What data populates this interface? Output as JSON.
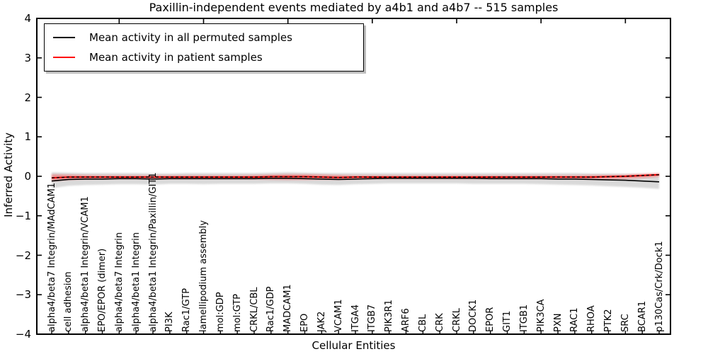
{
  "chart_data": {
    "type": "line",
    "title": "Paxillin-independent events mediated by a4b1 and a4b7 -- 515 samples",
    "xlabel": "Cellular Entities",
    "ylabel": "Inferred Activity",
    "ylim": [
      -4,
      4
    ],
    "yticks": [
      -4,
      -3,
      -2,
      -1,
      0,
      1,
      2,
      3,
      4
    ],
    "grid": false,
    "legend_position": "upper left",
    "categories": [
      "alpha4/beta7 Integrin/MAdCAM1",
      "cell adhesion",
      "alpha4/beta1 Integrin/VCAM1",
      "EPO/EPOR (dimer)",
      "alpha4/beta7 Integrin",
      "alpha4/beta1 Integrin",
      "alpha4/beta1 Integrin/Paxillin/GIT1",
      "PI3K",
      "Rac1/GTP",
      "lamellipodium assembly",
      "mol:GDP",
      "mol:GTP",
      "CRKL/CBL",
      "Rac1/GDP",
      "MADCAM1",
      "EPO",
      "JAK2",
      "VCAM1",
      "ITGA4",
      "ITGB7",
      "PIK3R1",
      "ARF6",
      "CBL",
      "CRK",
      "CRKL",
      "DOCK1",
      "EPOR",
      "GIT1",
      "ITGB1",
      "PIK3CA",
      "PXN",
      "RAC1",
      "RHOA",
      "PTK2",
      "SRC",
      "BCAR1",
      "p130Cas/Crk/Dock1"
    ],
    "series": [
      {
        "name": "Mean activity in all permuted samples",
        "color": "#000000",
        "style": "solid",
        "in_legend": true,
        "values": [
          -0.12,
          -0.08,
          -0.07,
          -0.07,
          -0.06,
          -0.06,
          -0.07,
          -0.06,
          -0.06,
          -0.06,
          -0.06,
          -0.06,
          -0.06,
          -0.05,
          -0.05,
          -0.06,
          -0.07,
          -0.08,
          -0.07,
          -0.06,
          -0.05,
          -0.05,
          -0.05,
          -0.05,
          -0.05,
          -0.05,
          -0.06,
          -0.06,
          -0.06,
          -0.06,
          -0.07,
          -0.07,
          -0.08,
          -0.09,
          -0.1,
          -0.12,
          -0.14
        ]
      },
      {
        "name": "Mean activity in patient samples",
        "color": "#ff0000",
        "style": "solid",
        "in_legend": true,
        "values": [
          -0.04,
          -0.02,
          -0.02,
          -0.02,
          -0.02,
          -0.02,
          -0.02,
          -0.02,
          -0.02,
          -0.02,
          -0.02,
          -0.02,
          -0.02,
          -0.01,
          -0.01,
          -0.01,
          -0.02,
          -0.03,
          -0.02,
          -0.02,
          -0.02,
          -0.02,
          -0.02,
          -0.02,
          -0.02,
          -0.02,
          -0.02,
          -0.02,
          -0.02,
          -0.02,
          -0.02,
          -0.02,
          -0.02,
          -0.01,
          0.0,
          0.02,
          0.04
        ]
      },
      {
        "name": "dashed-overlay-on-patient-mean",
        "color": "#000000",
        "style": "dashed",
        "in_legend": false,
        "values": [
          -0.04,
          -0.02,
          -0.02,
          -0.02,
          -0.02,
          -0.02,
          -0.02,
          -0.02,
          -0.02,
          -0.02,
          -0.02,
          -0.02,
          -0.02,
          -0.01,
          -0.01,
          -0.01,
          -0.02,
          -0.03,
          -0.02,
          -0.02,
          -0.02,
          -0.02,
          -0.02,
          -0.02,
          -0.02,
          -0.02,
          -0.02,
          -0.02,
          -0.02,
          -0.02,
          -0.02,
          -0.02,
          -0.02,
          -0.01,
          0.0,
          0.02,
          0.04
        ]
      }
    ],
    "bands": [
      {
        "name": "permuted-std-band",
        "color": "#aaaaaa",
        "opacity": 0.45,
        "upper": [
          0.1,
          0.09,
          0.08,
          0.08,
          0.08,
          0.08,
          0.07,
          0.07,
          0.08,
          0.08,
          0.08,
          0.08,
          0.08,
          0.09,
          0.1,
          0.09,
          0.08,
          0.08,
          0.08,
          0.08,
          0.08,
          0.08,
          0.08,
          0.08,
          0.08,
          0.08,
          0.08,
          0.08,
          0.08,
          0.08,
          0.08,
          0.08,
          0.07,
          0.07,
          0.06,
          0.06,
          0.05
        ],
        "lower": [
          -0.3,
          -0.24,
          -0.22,
          -0.21,
          -0.2,
          -0.2,
          -0.21,
          -0.19,
          -0.19,
          -0.2,
          -0.19,
          -0.19,
          -0.19,
          -0.18,
          -0.18,
          -0.19,
          -0.21,
          -0.22,
          -0.2,
          -0.19,
          -0.18,
          -0.18,
          -0.18,
          -0.18,
          -0.18,
          -0.19,
          -0.19,
          -0.19,
          -0.19,
          -0.2,
          -0.21,
          -0.22,
          -0.23,
          -0.25,
          -0.27,
          -0.29,
          -0.32
        ]
      },
      {
        "name": "patient-std-band",
        "color": "#ff2222",
        "opacity": 0.38,
        "upper": [
          0.05,
          0.04,
          0.03,
          0.02,
          0.02,
          0.02,
          0.02,
          0.02,
          0.02,
          0.02,
          0.02,
          0.02,
          0.03,
          0.04,
          0.05,
          0.05,
          0.04,
          0.03,
          0.02,
          0.02,
          0.02,
          0.02,
          0.02,
          0.02,
          0.02,
          0.02,
          0.02,
          0.02,
          0.02,
          0.02,
          0.02,
          0.02,
          0.03,
          0.03,
          0.04,
          0.06,
          0.08
        ],
        "lower": [
          -0.12,
          -0.09,
          -0.07,
          -0.06,
          -0.06,
          -0.06,
          -0.06,
          -0.06,
          -0.06,
          -0.06,
          -0.06,
          -0.06,
          -0.07,
          -0.08,
          -0.09,
          -0.09,
          -0.08,
          -0.08,
          -0.07,
          -0.06,
          -0.06,
          -0.06,
          -0.06,
          -0.06,
          -0.06,
          -0.06,
          -0.06,
          -0.06,
          -0.06,
          -0.06,
          -0.06,
          -0.06,
          -0.07,
          -0.07,
          -0.06,
          -0.04,
          -0.01
        ]
      }
    ],
    "top_tick_indices": [
      4,
      9,
      14,
      19,
      24,
      29,
      34
    ]
  }
}
